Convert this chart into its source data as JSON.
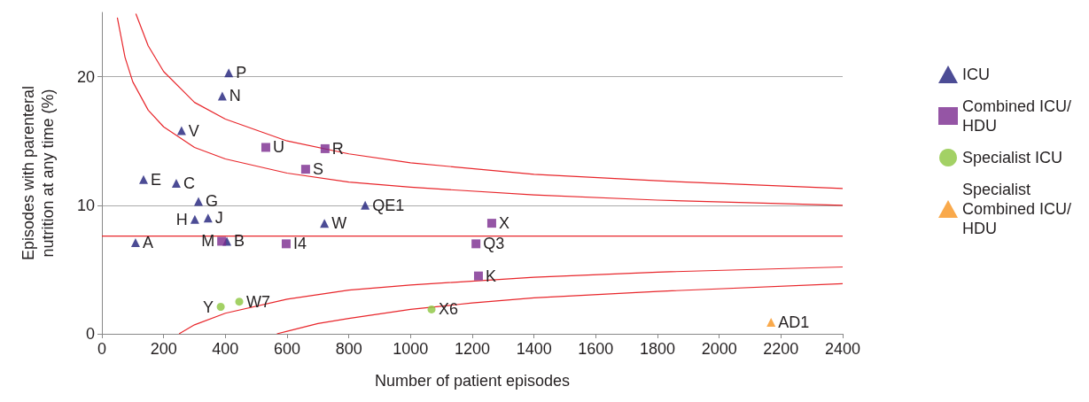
{
  "chart_data": {
    "type": "scatter",
    "xlabel": "Number of patient episodes",
    "ylabel": "Episodes with parenteral\nnutrition at any time (%)",
    "xlim": [
      0,
      2400
    ],
    "xticks": [
      0,
      200,
      400,
      600,
      800,
      1000,
      1200,
      1400,
      1600,
      1800,
      2000,
      2200,
      2400
    ],
    "ylim": [
      0,
      25
    ],
    "yticks": [
      0,
      10,
      20
    ],
    "grid": "y",
    "legend": "right",
    "series": [
      {
        "name": "ICU",
        "color": "#1f1f7a",
        "marker": "triangle",
        "x": [
          109,
          135,
          241,
          258,
          313,
          301,
          344,
          405,
          390,
          411,
          721,
          853
        ],
        "values": [
          7.1,
          12.0,
          11.7,
          15.8,
          10.3,
          8.9,
          9.0,
          7.2,
          18.5,
          20.3,
          8.6,
          10.0
        ]
      },
      {
        "name": "Combined ICU/HDU",
        "color": "#7b2a8e",
        "marker": "square",
        "x": [
          388,
          531,
          723,
          660,
          597,
          1263,
          1212,
          1220
        ],
        "values": [
          7.2,
          14.5,
          14.4,
          12.8,
          7.0,
          8.6,
          7.0,
          4.5
        ]
      },
      {
        "name": "Specialist ICU",
        "color": "#8cc63f",
        "marker": "circle",
        "x": [
          385,
          445,
          1068
        ],
        "values": [
          2.1,
          2.5,
          1.9
        ]
      },
      {
        "name": "Specialist Combined ICU/HDU",
        "color": "#f7931e",
        "marker": "triangle",
        "x": [
          2168
        ],
        "values": [
          0.9
        ]
      },
      {
        "type": "line",
        "color": "#e8262b",
        "marker": "none",
        "line_style": "solid",
        "x": [
          0,
          2400
        ],
        "values": [
          7.6,
          7.6
        ]
      },
      {
        "type": "line",
        "color": "#e8262b",
        "marker": "none",
        "line_style": "solid",
        "x": [
          110,
          150,
          200,
          300,
          400,
          600,
          800,
          1000,
          1400,
          1800,
          2400
        ],
        "values": [
          24.9,
          22.4,
          20.4,
          18.0,
          16.7,
          15.0,
          14.0,
          13.3,
          12.4,
          11.9,
          11.3
        ]
      },
      {
        "type": "line",
        "color": "#e8262b",
        "marker": "none",
        "line_style": "solid",
        "x": [
          50,
          75,
          100,
          150,
          200,
          300,
          400,
          600,
          800,
          1000,
          1400,
          1800,
          2400
        ],
        "values": [
          24.6,
          21.5,
          19.6,
          17.4,
          16.1,
          14.5,
          13.6,
          12.5,
          11.8,
          11.4,
          10.8,
          10.4,
          10.0
        ]
      },
      {
        "type": "line",
        "color": "#e8262b",
        "marker": "none",
        "line_style": "solid",
        "x": [
          250,
          300,
          400,
          600,
          800,
          1000,
          1400,
          1800,
          2400
        ],
        "values": [
          0.0,
          0.7,
          1.6,
          2.7,
          3.4,
          3.8,
          4.4,
          4.8,
          5.2
        ]
      },
      {
        "type": "line",
        "color": "#e8262b",
        "marker": "none",
        "line_style": "solid",
        "x": [
          567,
          600,
          700,
          800,
          1000,
          1200,
          1400,
          1800,
          2400
        ],
        "values": [
          0.0,
          0.2,
          0.8,
          1.2,
          1.9,
          2.4,
          2.8,
          3.3,
          3.9
        ]
      }
    ],
    "annotations": [
      {
        "text": "A",
        "x": 109,
        "y": 7.1
      },
      {
        "text": "E",
        "x": 135,
        "y": 12.0
      },
      {
        "text": "C",
        "x": 241,
        "y": 11.7
      },
      {
        "text": "V",
        "x": 258,
        "y": 15.8
      },
      {
        "text": "G",
        "x": 313,
        "y": 10.3
      },
      {
        "text": "H",
        "x": 301,
        "y": 8.9
      },
      {
        "text": "J",
        "x": 344,
        "y": 9.0
      },
      {
        "text": "B",
        "x": 405,
        "y": 7.2
      },
      {
        "text": "N",
        "x": 390,
        "y": 18.5
      },
      {
        "text": "P",
        "x": 411,
        "y": 20.3
      },
      {
        "text": "W",
        "x": 721,
        "y": 8.6
      },
      {
        "text": "QE1",
        "x": 853,
        "y": 10.0
      },
      {
        "text": "M",
        "x": 388,
        "y": 7.2
      },
      {
        "text": "U",
        "x": 531,
        "y": 14.5
      },
      {
        "text": "R",
        "x": 723,
        "y": 14.4
      },
      {
        "text": "S",
        "x": 660,
        "y": 12.8
      },
      {
        "text": "I4",
        "x": 597,
        "y": 7.0
      },
      {
        "text": "X",
        "x": 1263,
        "y": 8.6
      },
      {
        "text": "Q3",
        "x": 1212,
        "y": 7.0
      },
      {
        "text": "K",
        "x": 1220,
        "y": 4.5
      },
      {
        "text": "Y",
        "x": 385,
        "y": 2.1
      },
      {
        "text": "W7",
        "x": 445,
        "y": 2.5
      },
      {
        "text": "X6",
        "x": 1068,
        "y": 1.9
      },
      {
        "text": "AD1",
        "x": 2168,
        "y": 0.9
      }
    ]
  }
}
